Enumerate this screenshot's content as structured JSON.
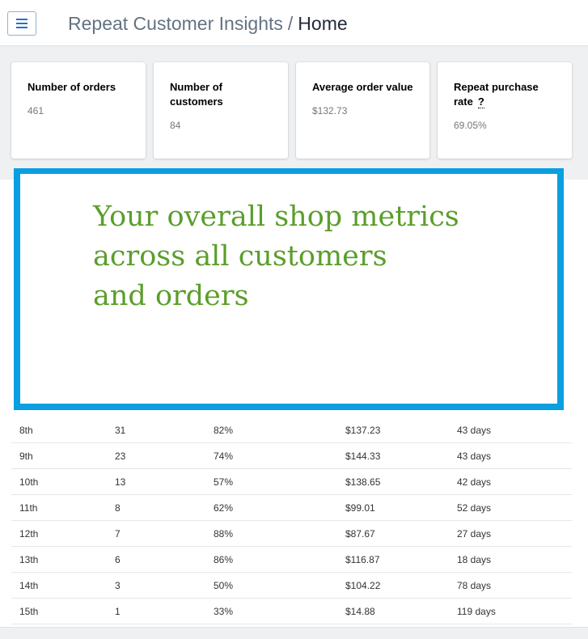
{
  "header": {
    "title": "Repeat Customer Insights",
    "separator": "/",
    "page": "Home"
  },
  "metrics": [
    {
      "label_lines": [
        "Number of orders"
      ],
      "value": "461"
    },
    {
      "label_lines": [
        "Number of",
        "customers"
      ],
      "value": "84"
    },
    {
      "label_lines": [
        "Average order value"
      ],
      "value": "$132.73"
    },
    {
      "label_lines": [
        "Repeat purchase",
        "rate"
      ],
      "help": "?",
      "value": "69.05%"
    }
  ],
  "callout": {
    "lines": [
      "Your overall shop metrics",
      "across all customers",
      "and orders"
    ]
  },
  "table": {
    "rows": [
      [
        "8th",
        "31",
        "82%",
        "$137.23",
        "43 days"
      ],
      [
        "9th",
        "23",
        "74%",
        "$144.33",
        "43 days"
      ],
      [
        "10th",
        "13",
        "57%",
        "$138.65",
        "42 days"
      ],
      [
        "11th",
        "8",
        "62%",
        "$99.01",
        "52 days"
      ],
      [
        "12th",
        "7",
        "88%",
        "$87.67",
        "27 days"
      ],
      [
        "13th",
        "6",
        "86%",
        "$116.87",
        "18 days"
      ],
      [
        "14th",
        "3",
        "50%",
        "$104.22",
        "78 days"
      ],
      [
        "15th",
        "1",
        "33%",
        "$14.88",
        "119 days"
      ]
    ]
  }
}
